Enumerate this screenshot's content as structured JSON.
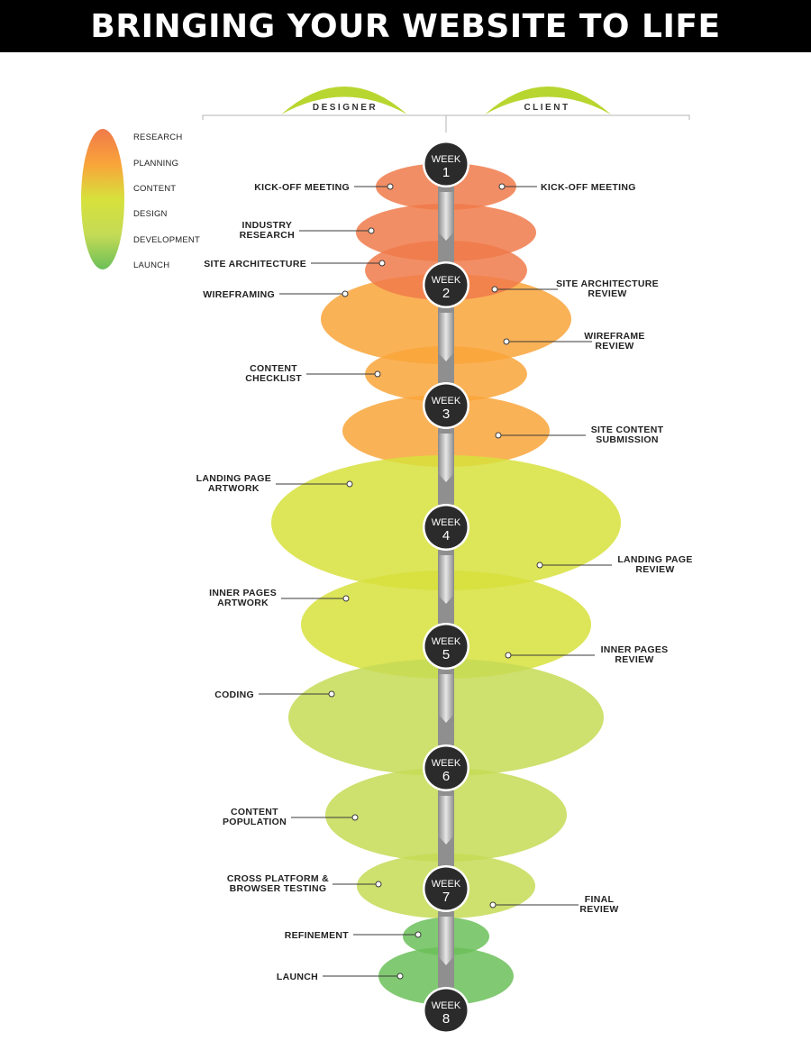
{
  "title": "BRINGING YOUR WEBSITE TO LIFE",
  "roles": {
    "designer": "DESIGNER",
    "client": "CLIENT"
  },
  "legend": [
    "RESEARCH",
    "PLANNING",
    "CONTENT",
    "DESIGN",
    "DEVELOPMENT",
    "LAUNCH"
  ],
  "phase_colors": {
    "research": "#f07a4a",
    "planning": "#f9a43a",
    "design": "#d7e13c",
    "development": "#c5db55",
    "launch": "#6bbf59",
    "weeks": "#2b2b2b"
  },
  "weeks": [
    {
      "word": "WEEK",
      "num": "1"
    },
    {
      "word": "WEEK",
      "num": "2"
    },
    {
      "word": "WEEK",
      "num": "3"
    },
    {
      "word": "WEEK",
      "num": "4"
    },
    {
      "word": "WEEK",
      "num": "5"
    },
    {
      "word": "WEEK",
      "num": "6"
    },
    {
      "word": "WEEK",
      "num": "7"
    },
    {
      "word": "WEEK",
      "num": "8"
    }
  ],
  "designer_tasks": [
    [
      "KICK-OFF MEETING"
    ],
    [
      "INDUSTRY",
      "RESEARCH"
    ],
    [
      "SITE ARCHITECTURE"
    ],
    [
      "WIREFRAMING"
    ],
    [
      "CONTENT",
      "CHECKLIST"
    ],
    [
      "LANDING PAGE",
      "ARTWORK"
    ],
    [
      "INNER PAGES",
      "ARTWORK"
    ],
    [
      "CODING"
    ],
    [
      "CONTENT",
      "POPULATION"
    ],
    [
      "CROSS PLATFORM &",
      "BROWSER TESTING"
    ],
    [
      "REFINEMENT"
    ],
    [
      "LAUNCH"
    ]
  ],
  "client_tasks": [
    [
      "KICK-OFF MEETING"
    ],
    [
      "SITE ARCHITECTURE",
      "REVIEW"
    ],
    [
      "WIREFRAME",
      "REVIEW"
    ],
    [
      "SITE CONTENT",
      "SUBMISSION"
    ],
    [
      "LANDING PAGE",
      "REVIEW"
    ],
    [
      "INNER PAGES",
      "REVIEW"
    ],
    [
      "FINAL",
      "REVIEW"
    ]
  ]
}
